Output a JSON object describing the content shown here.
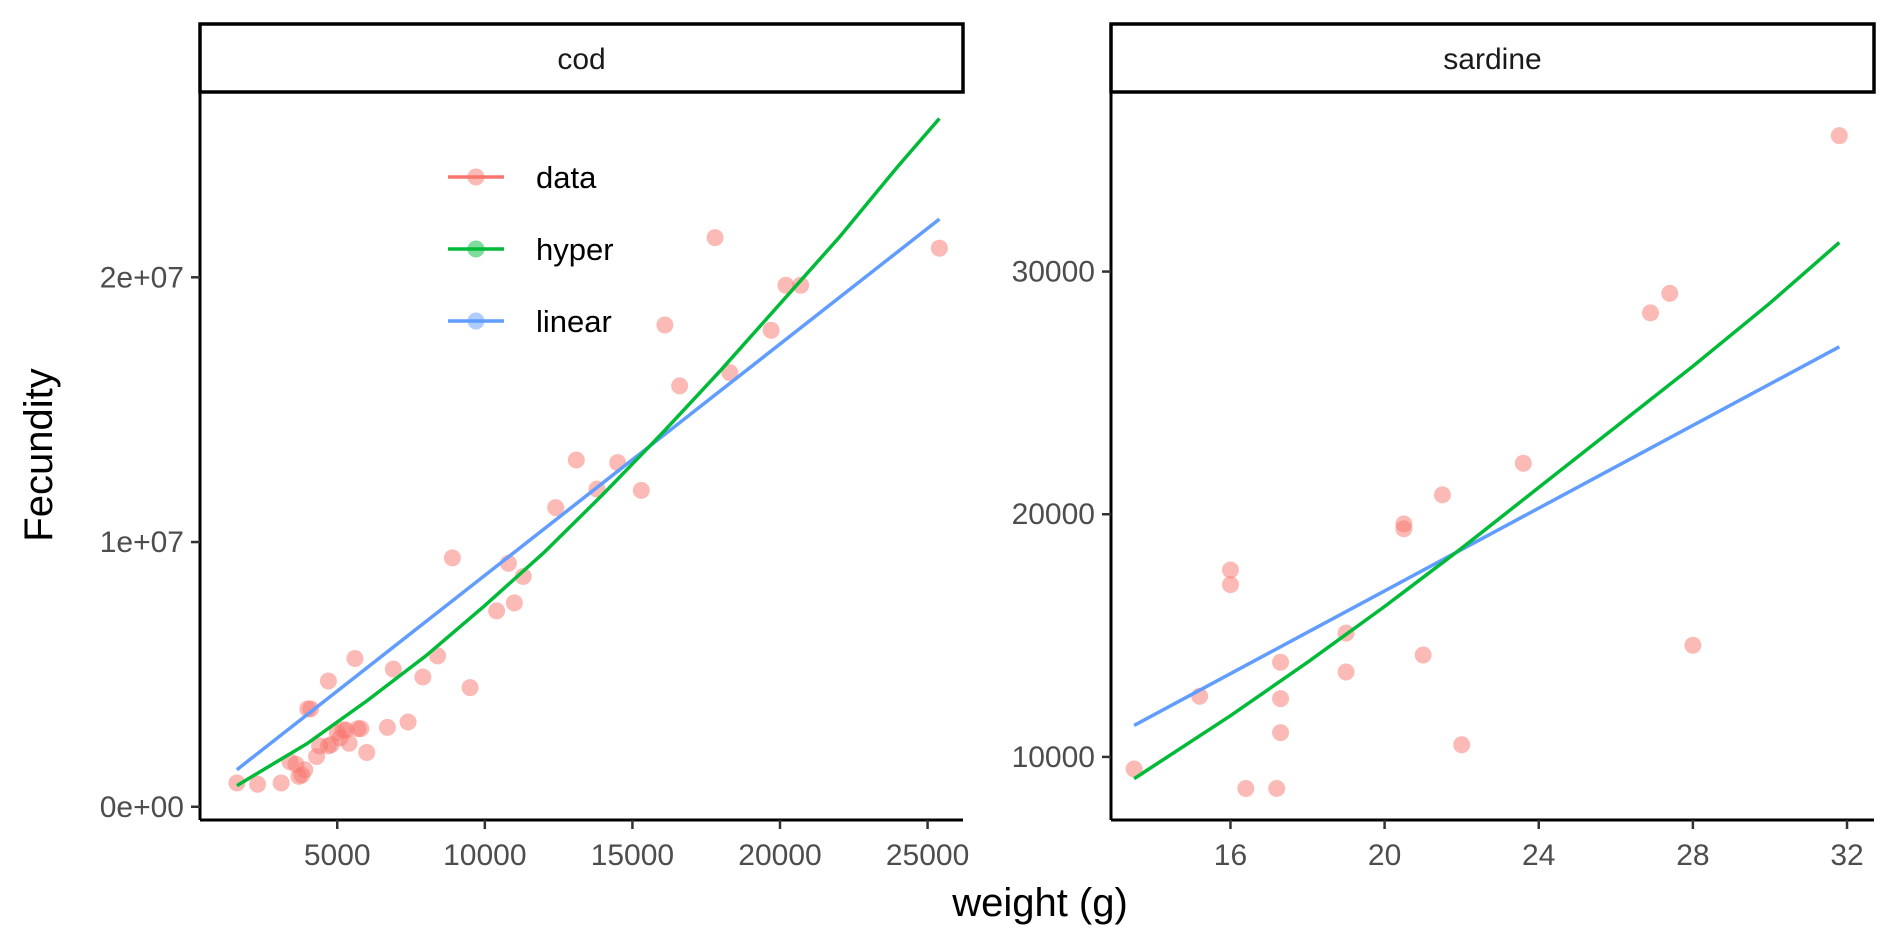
{
  "chart_data": {
    "type": "scatter",
    "xlabel": "weight (g)",
    "ylabel": "Fecundity",
    "legend": {
      "placement": "top-left inside cod panel",
      "entries": [
        {
          "label": "data",
          "color": "#F8766D"
        },
        {
          "label": "hyper",
          "color": "#00BA38"
        },
        {
          "label": "linear",
          "color": "#619CFF"
        }
      ]
    },
    "colors": {
      "data": "#F8766D",
      "hyper": "#00BA38",
      "linear": "#619CFF"
    },
    "panels": [
      {
        "title": "cod",
        "xlim": [
          350,
          26200
        ],
        "ylim": [
          -500000,
          27000000
        ],
        "xticks": [
          {
            "value": 5000,
            "label": "5000"
          },
          {
            "value": 10000,
            "label": "10000"
          },
          {
            "value": 15000,
            "label": "15000"
          },
          {
            "value": 20000,
            "label": "20000"
          },
          {
            "value": 25000,
            "label": "25000"
          }
        ],
        "yticks": [
          {
            "value": 0,
            "label": "0e+00"
          },
          {
            "value": 10000000,
            "label": "1e+07"
          },
          {
            "value": 20000000,
            "label": "2e+07"
          }
        ],
        "points": [
          [
            1600,
            900000
          ],
          [
            2300,
            850000
          ],
          [
            3100,
            900000
          ],
          [
            3400,
            1700000
          ],
          [
            3600,
            1600000
          ],
          [
            3700,
            1150000
          ],
          [
            3800,
            1200000
          ],
          [
            3900,
            1400000
          ],
          [
            4000,
            3700000
          ],
          [
            4100,
            3700000
          ],
          [
            4300,
            1900000
          ],
          [
            4400,
            2300000
          ],
          [
            4700,
            4750000
          ],
          [
            4700,
            2300000
          ],
          [
            4800,
            2350000
          ],
          [
            5000,
            2800000
          ],
          [
            5100,
            2600000
          ],
          [
            5200,
            2900000
          ],
          [
            5300,
            2900000
          ],
          [
            5400,
            2400000
          ],
          [
            5600,
            5600000
          ],
          [
            5700,
            2950000
          ],
          [
            5800,
            2950000
          ],
          [
            6000,
            2050000
          ],
          [
            6700,
            3000000
          ],
          [
            6900,
            5200000
          ],
          [
            7400,
            3200000
          ],
          [
            7900,
            4900000
          ],
          [
            8400,
            5700000
          ],
          [
            8900,
            9400000
          ],
          [
            9500,
            4500000
          ],
          [
            10400,
            7400000
          ],
          [
            10800,
            9200000
          ],
          [
            11000,
            7700000
          ],
          [
            11300,
            8700000
          ],
          [
            12400,
            11300000
          ],
          [
            13100,
            13100000
          ],
          [
            13800,
            12000000
          ],
          [
            14500,
            13000000
          ],
          [
            15300,
            11950000
          ],
          [
            16100,
            18200000
          ],
          [
            16600,
            15900000
          ],
          [
            17800,
            21500000
          ],
          [
            18300,
            16400000
          ],
          [
            19700,
            18000000
          ],
          [
            20200,
            19700000
          ],
          [
            20700,
            19700000
          ],
          [
            25400,
            21100000
          ]
        ],
        "hyper": {
          "x": [
            1600,
            4000,
            6000,
            8000,
            10000,
            12000,
            14000,
            16000,
            18000,
            20000,
            22000,
            24000,
            25400
          ],
          "y": [
            800000,
            2400000,
            4000000,
            5700000,
            7600000,
            9600000,
            11800000,
            14100000,
            16500000,
            19000000,
            21500000,
            24200000,
            26000000
          ]
        },
        "linear": {
          "x": [
            1600,
            25400
          ],
          "y": [
            1400000,
            22200000
          ]
        }
      },
      {
        "title": "sardine",
        "xlim": [
          12.9,
          32.7
        ],
        "ylim": [
          7400,
          37400
        ],
        "xticks": [
          {
            "value": 16,
            "label": "16"
          },
          {
            "value": 20,
            "label": "20"
          },
          {
            "value": 24,
            "label": "24"
          },
          {
            "value": 28,
            "label": "28"
          },
          {
            "value": 32,
            "label": "32"
          }
        ],
        "yticks": [
          {
            "value": 10000,
            "label": "10000"
          },
          {
            "value": 20000,
            "label": "20000"
          },
          {
            "value": 30000,
            "label": "30000"
          }
        ],
        "points": [
          [
            13.5,
            9500
          ],
          [
            15.2,
            12500
          ],
          [
            16.0,
            17700
          ],
          [
            16.0,
            17100
          ],
          [
            16.4,
            8700
          ],
          [
            17.2,
            8700
          ],
          [
            17.3,
            13900
          ],
          [
            17.3,
            12400
          ],
          [
            17.3,
            11000
          ],
          [
            19.0,
            13500
          ],
          [
            19.0,
            15100
          ],
          [
            20.5,
            19600
          ],
          [
            20.5,
            19400
          ],
          [
            21.0,
            14200
          ],
          [
            21.5,
            20800
          ],
          [
            22.0,
            10500
          ],
          [
            23.6,
            22100
          ],
          [
            26.9,
            28300
          ],
          [
            27.4,
            29100
          ],
          [
            28.0,
            14600
          ],
          [
            31.8,
            35600
          ]
        ],
        "hyper": {
          "x": [
            13.5,
            16,
            18,
            20,
            22,
            24,
            26,
            28,
            30,
            31.8
          ],
          "y": [
            9100,
            11700,
            13900,
            16200,
            18600,
            21100,
            23600,
            26100,
            28700,
            31200
          ]
        },
        "linear": {
          "x": [
            13.5,
            31.8
          ],
          "y": [
            11300,
            26900
          ]
        }
      }
    ]
  }
}
